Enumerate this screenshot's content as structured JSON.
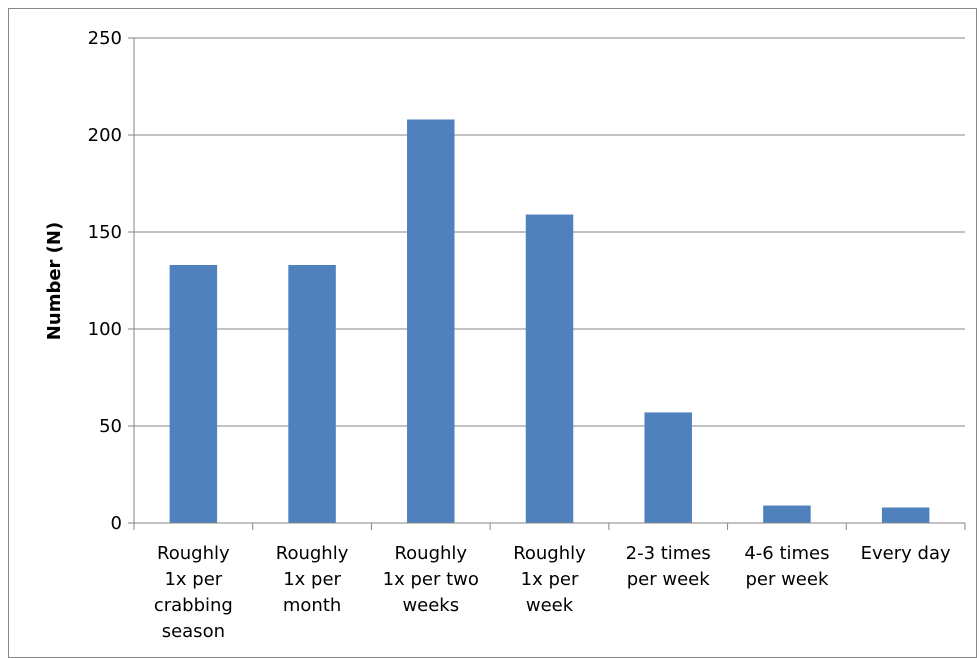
{
  "chart_data": {
    "type": "bar",
    "title": "",
    "xlabel": "",
    "ylabel": "Number (N)",
    "ylim": [
      0,
      250
    ],
    "yticks": [
      0,
      50,
      100,
      150,
      200,
      250
    ],
    "grid": true,
    "legend": "none",
    "bar_color": "#4f81bd",
    "categories": [
      [
        "Roughly",
        "1x per",
        "crabbing",
        "season"
      ],
      [
        "Roughly",
        "1x per",
        "month"
      ],
      [
        "Roughly",
        "1x per two",
        "weeks"
      ],
      [
        "Roughly",
        "1x per",
        "week"
      ],
      [
        "2-3 times",
        "per week"
      ],
      [
        "4-6 times",
        "per week"
      ],
      [
        "Every day"
      ]
    ],
    "values": [
      133,
      133,
      208,
      159,
      57,
      9,
      8
    ]
  }
}
